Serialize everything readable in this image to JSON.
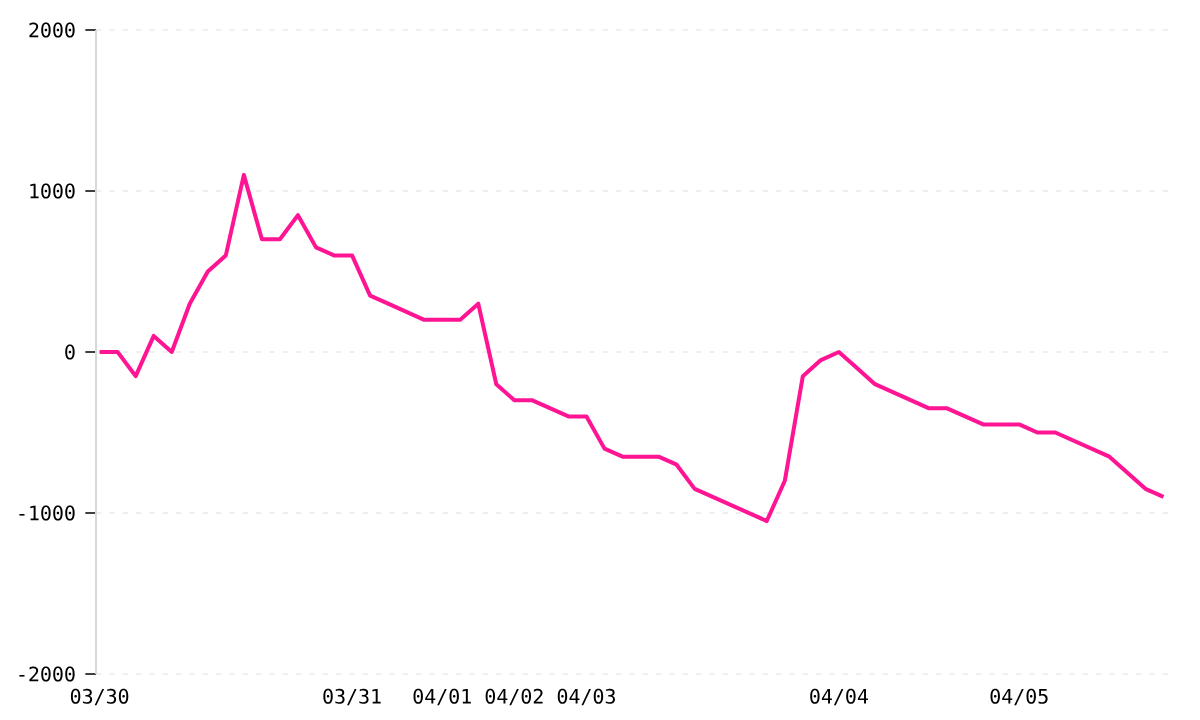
{
  "chart_data": {
    "type": "line",
    "categories": [
      "03/30",
      null,
      null,
      null,
      null,
      null,
      null,
      null,
      null,
      null,
      null,
      null,
      null,
      null,
      "03/31",
      null,
      null,
      null,
      null,
      "04/01",
      null,
      null,
      null,
      "04/02",
      null,
      null,
      null,
      "04/03",
      null,
      null,
      null,
      null,
      null,
      null,
      null,
      null,
      null,
      null,
      null,
      null,
      null,
      "04/04",
      null,
      null,
      null,
      null,
      null,
      null,
      null,
      null,
      null,
      "04/05",
      null,
      null,
      null,
      null,
      null,
      null,
      null,
      null
    ],
    "series": [
      {
        "color": "#ff1493",
        "values": [
          0,
          0,
          -150,
          100,
          0,
          300,
          500,
          600,
          1100,
          700,
          700,
          850,
          650,
          600,
          600,
          350,
          300,
          250,
          200,
          200,
          200,
          300,
          -200,
          -300,
          -300,
          -350,
          -400,
          -400,
          -600,
          -650,
          -650,
          -650,
          -700,
          -850,
          -900,
          -950,
          -1000,
          -1050,
          -800,
          -150,
          -50,
          0,
          -100,
          -200,
          -250,
          -300,
          -350,
          -350,
          -400,
          -450,
          -450,
          -450,
          -500,
          -500,
          -550,
          -600,
          -650,
          -750,
          -850,
          -900
        ]
      }
    ],
    "ylim": [
      -2000,
      2000
    ],
    "yticks": [
      -2000,
      -1000,
      0,
      1000,
      2000
    ],
    "grid": "y",
    "marker": "none",
    "line_style": "solid"
  }
}
